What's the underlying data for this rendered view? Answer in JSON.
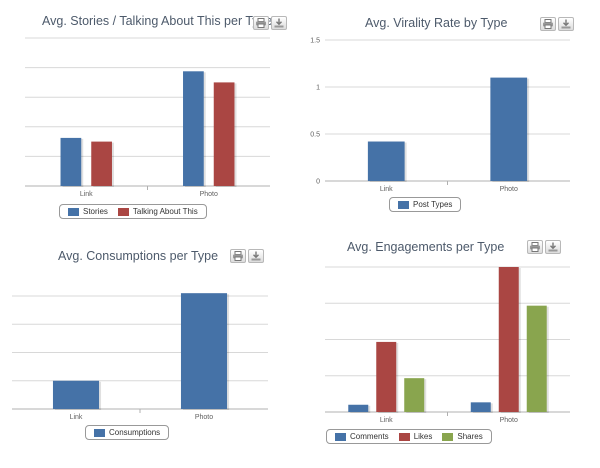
{
  "chart_data": [
    {
      "type": "bar",
      "title": "Avg. Stories / Talking About This per Type",
      "categories": [
        "Link",
        "Photo"
      ],
      "series": [
        {
          "name": "Stories",
          "values": [
            1.3,
            3.1
          ]
        },
        {
          "name": "Talking About This",
          "values": [
            1.2,
            2.8
          ]
        }
      ],
      "ylim": [
        0,
        4
      ],
      "y_ticks": [],
      "grid": true,
      "legend": "bottom"
    },
    {
      "type": "bar",
      "title": "Avg. Virality Rate by Type",
      "categories": [
        "Link",
        "Photo"
      ],
      "series": [
        {
          "name": "Post Types",
          "values": [
            0.42,
            1.1
          ]
        }
      ],
      "ylim": [
        0,
        1.5
      ],
      "y_ticks": [
        "0",
        "0.5",
        "1",
        "1.5"
      ],
      "grid": true,
      "legend": "bottom"
    },
    {
      "type": "bar",
      "title": "Avg. Consumptions per Type",
      "categories": [
        "Link",
        "Photo"
      ],
      "series": [
        {
          "name": "Consumptions",
          "values": [
            1.0,
            4.1
          ]
        }
      ],
      "ylim": [
        0,
        4
      ],
      "y_ticks": [],
      "grid": true,
      "legend": "bottom"
    },
    {
      "type": "bar",
      "title": "Avg. Engagements per Type",
      "categories": [
        "Link",
        "Photo"
      ],
      "series": [
        {
          "name": "Comments",
          "values": [
            0.15,
            0.2
          ]
        },
        {
          "name": "Likes",
          "values": [
            1.45,
            3.0
          ]
        },
        {
          "name": "Shares",
          "values": [
            0.7,
            2.2
          ]
        }
      ],
      "ylim": [
        0,
        3
      ],
      "y_ticks": [],
      "grid": true,
      "legend": "bottom"
    }
  ],
  "colors": {
    "series": [
      "#4572a7",
      "#aa4643",
      "#89a54e"
    ],
    "grid": "#d8d8d8",
    "axis": "#b0b0b0",
    "title": "#4d5a6b"
  },
  "icons": {
    "print": "print-icon",
    "export": "download-icon"
  }
}
